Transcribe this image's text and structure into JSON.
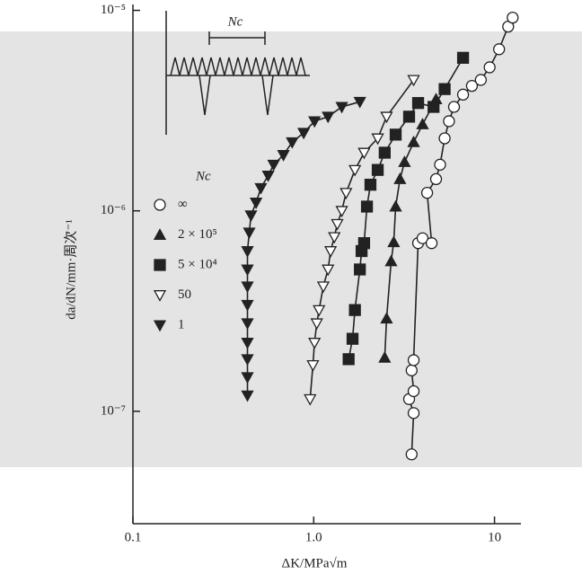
{
  "chart_data": {
    "type": "scatter",
    "x_label": "ΔK/MPa√m",
    "y_label": "da/dN/mm·周次⁻¹",
    "inset_label": "Nc",
    "legend_title": "Nc",
    "log_x": true,
    "log_y": true,
    "xlim": [
      0.1,
      14
    ],
    "ylim": [
      2.75e-08,
      1.07e-05
    ],
    "xticks": [
      0.1,
      {
        "value": 1,
        "label": "1.0"
      },
      10
    ],
    "yticks": [
      {
        "value": 1e-05,
        "label": "10⁻⁵"
      },
      {
        "value": 1e-06,
        "label": "10⁻⁶"
      },
      {
        "value": 1e-07,
        "label": "10⁻⁷"
      }
    ],
    "series": [
      {
        "name": "∞",
        "marker": "circle",
        "filled": false,
        "color": "#222",
        "x": [
          3.48,
          3.57,
          3.37,
          3.57,
          3.48,
          3.57,
          3.78,
          4.0,
          4.49,
          4.24,
          4.75,
          5.0,
          5.3,
          5.6,
          5.97,
          6.7,
          7.5,
          8.4,
          9.4,
          10.6,
          11.9,
          12.6
        ],
        "values": [
          6.1e-08,
          9.8e-08,
          1.15e-07,
          1.26e-07,
          1.6e-07,
          1.8e-07,
          6.9e-07,
          7.3e-07,
          6.9e-07,
          1.23e-06,
          1.44e-06,
          1.7e-06,
          2.3e-06,
          2.8e-06,
          3.3e-06,
          3.8e-06,
          4.2e-06,
          4.5e-06,
          5.2e-06,
          6.4e-06,
          8.3e-06,
          9.2e-06
        ]
      },
      {
        "name": "2 × 10⁵",
        "marker": "triangle-up",
        "filled": true,
        "color": "#222",
        "x": [
          2.47,
          2.53,
          2.68,
          2.77,
          2.84,
          3.0,
          3.18,
          3.57,
          4.0,
          4.75
        ],
        "values": [
          1.85e-07,
          2.9e-07,
          5.6e-07,
          6.97e-07,
          1.05e-06,
          1.44e-06,
          1.75e-06,
          2.2e-06,
          2.7e-06,
          3.6e-06
        ]
      },
      {
        "name": "5 × 10⁴",
        "marker": "square",
        "filled": true,
        "color": "#222",
        "x": [
          1.56,
          1.64,
          1.69,
          1.8,
          1.84,
          1.9,
          1.97,
          2.06,
          2.26,
          2.47,
          2.84,
          3.37,
          3.78,
          4.6,
          5.3,
          6.7
        ],
        "values": [
          1.82e-07,
          2.3e-07,
          3.2e-07,
          5.1e-07,
          6.3e-07,
          6.9e-07,
          1.05e-06,
          1.35e-06,
          1.6e-06,
          1.95e-06,
          2.4e-06,
          2.95e-06,
          3.45e-06,
          3.3e-06,
          4.05e-06,
          5.8e-06
        ]
      },
      {
        "name": "50",
        "marker": "triangle-down",
        "filled": false,
        "color": "#222",
        "x": [
          0.955,
          0.99,
          1.01,
          1.04,
          1.07,
          1.13,
          1.2,
          1.24,
          1.3,
          1.35,
          1.43,
          1.51,
          1.69,
          1.9,
          2.26,
          2.53,
          3.57
        ],
        "values": [
          1.15e-07,
          1.7e-07,
          2.2e-07,
          2.75e-07,
          3.2e-07,
          4.2e-07,
          5.1e-07,
          6.3e-07,
          7.4e-07,
          8.6e-07,
          1e-06,
          1.23e-06,
          1.6e-06,
          1.95e-06,
          2.3e-06,
          2.95e-06,
          4.5e-06
        ]
      },
      {
        "name": "1",
        "marker": "triangle-down",
        "filled": true,
        "color": "#222",
        "x": [
          0.43,
          0.43,
          0.43,
          0.43,
          0.43,
          0.43,
          0.43,
          0.43,
          0.43,
          0.44,
          0.45,
          0.48,
          0.51,
          0.56,
          0.6,
          0.68,
          0.76,
          0.88,
          1.01,
          1.2,
          1.43,
          1.8
        ],
        "values": [
          1.2e-07,
          1.48e-07,
          1.82e-07,
          2.2e-07,
          2.75e-07,
          3.4e-07,
          4.2e-07,
          5.1e-07,
          6.3e-07,
          7.8e-07,
          9.5e-07,
          1.1e-06,
          1.3e-06,
          1.5e-06,
          1.7e-06,
          1.9e-06,
          2.2e-06,
          2.45e-06,
          2.8e-06,
          2.95e-06,
          3.3e-06,
          3.5e-06
        ]
      }
    ]
  }
}
